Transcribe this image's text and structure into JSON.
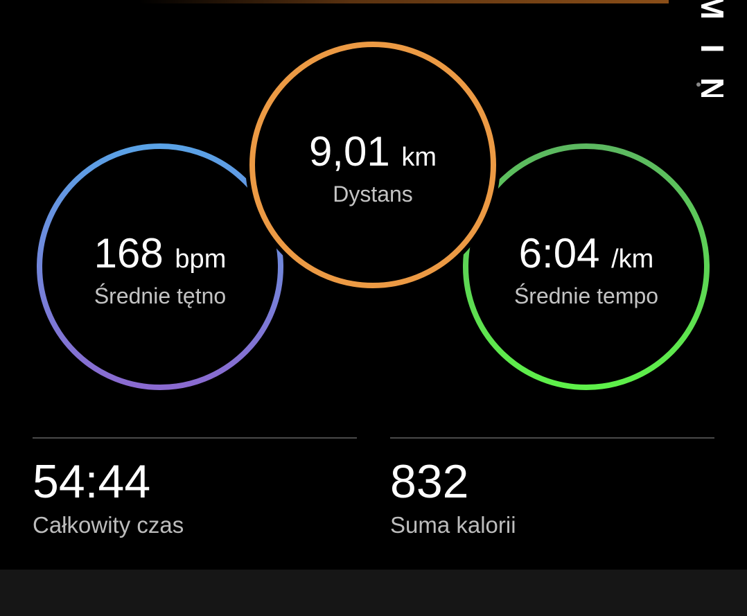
{
  "logo": {
    "text": "GARMIN"
  },
  "circles": {
    "heart_rate": {
      "value": "168",
      "unit": "bpm",
      "label": "Średnie tętno",
      "colors": [
        "#5aa2e6",
        "#8a6ad0"
      ]
    },
    "distance": {
      "value": "9,01",
      "unit": "km",
      "label": "Dystans",
      "colors": [
        "#ec9a44"
      ]
    },
    "pace": {
      "value": "6:04",
      "unit": "/km",
      "label": "Średnie tempo",
      "colors": [
        "#5cb860",
        "#5ef04a"
      ]
    }
  },
  "stats": [
    {
      "value": "54:44",
      "label": "Całkowity czas"
    },
    {
      "value": "832",
      "label": "Suma kalorii"
    }
  ]
}
